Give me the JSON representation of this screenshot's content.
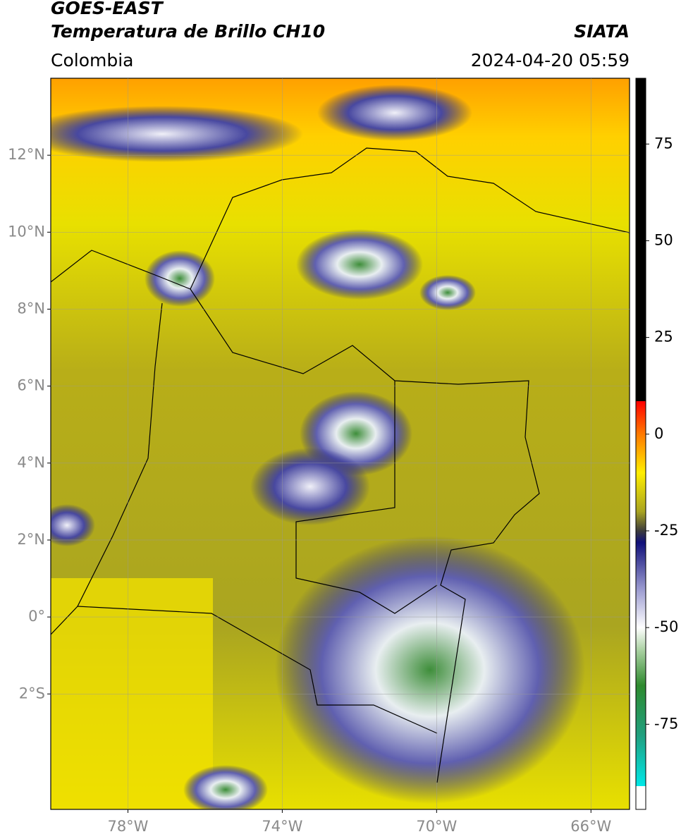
{
  "header": {
    "title": "GOES-EAST",
    "subtitle": "Temperatura de Brillo CH10",
    "region": "Colombia",
    "source": "SIATA",
    "datetime": "2024-04-20 05:59"
  },
  "map": {
    "lonlim": [
      -80,
      -65
    ],
    "latlim": [
      -5,
      14
    ],
    "grid": true,
    "xticks": [
      {
        "value": -78,
        "label": "78°W"
      },
      {
        "value": -74,
        "label": "74°W"
      },
      {
        "value": -70,
        "label": "70°W"
      },
      {
        "value": -66,
        "label": "66°W"
      }
    ],
    "yticks": [
      {
        "value": 12,
        "label": "12°N"
      },
      {
        "value": 10,
        "label": "10°N"
      },
      {
        "value": 8,
        "label": "8°N"
      },
      {
        "value": 6,
        "label": "6°N"
      },
      {
        "value": 4,
        "label": "4°N"
      },
      {
        "value": 2,
        "label": "2°N"
      },
      {
        "value": 0,
        "label": "0°"
      },
      {
        "value": -2,
        "label": "2°S"
      }
    ]
  },
  "colorbar": {
    "lim": [
      -97,
      92
    ],
    "ticks": [
      75,
      50,
      25,
      0,
      -25,
      -50,
      -75
    ],
    "stops": [
      {
        "value": 92,
        "color": "#000000"
      },
      {
        "value": 8.5,
        "color": "#000000"
      },
      {
        "value": 8.5,
        "color": "#ff0000"
      },
      {
        "value": 0,
        "color": "#ff7a00"
      },
      {
        "value": -10,
        "color": "#ffee00"
      },
      {
        "value": -20,
        "color": "#a9a420"
      },
      {
        "value": -25,
        "color": "#3c3c3c"
      },
      {
        "value": -28,
        "color": "#10107a"
      },
      {
        "value": -40,
        "color": "#9a9ad0"
      },
      {
        "value": -50,
        "color": "#ffffff"
      },
      {
        "value": -56,
        "color": "#a8d0a0"
      },
      {
        "value": -65,
        "color": "#2e8a2e"
      },
      {
        "value": -78,
        "color": "#20a080"
      },
      {
        "value": -91,
        "color": "#00e8e8"
      },
      {
        "value": -91,
        "color": "#ffffff"
      },
      {
        "value": -97,
        "color": "#ffffff"
      }
    ]
  }
}
